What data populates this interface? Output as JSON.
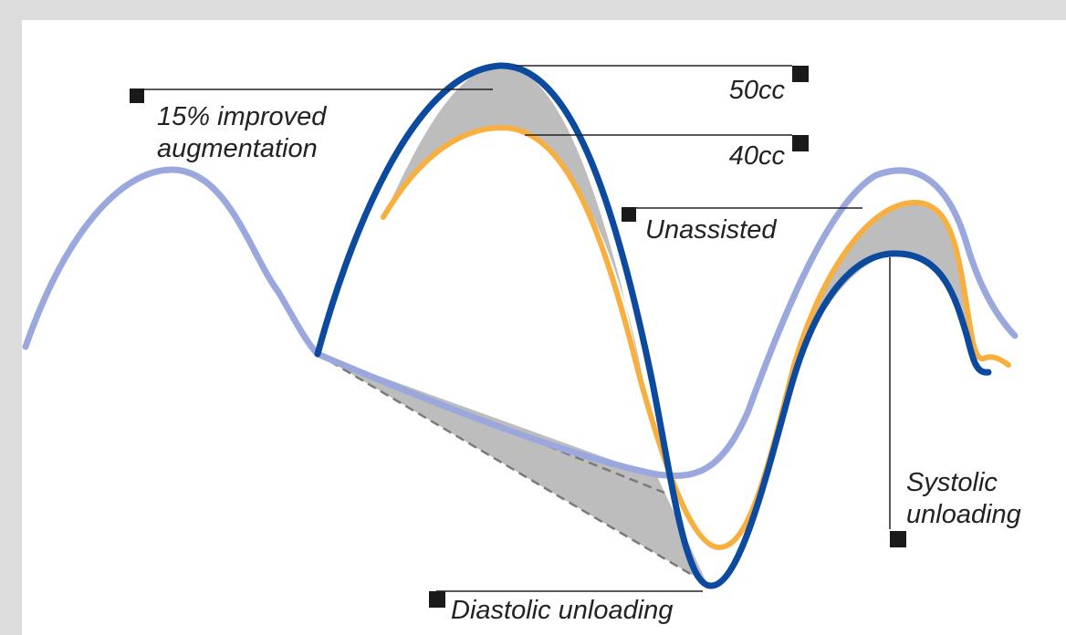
{
  "labels": {
    "augmentation": [
      "15% improved",
      "augmentation"
    ],
    "vol_50": "50cc",
    "vol_40": "40cc",
    "unassisted": "Unassisted",
    "systolic": [
      "Systolic",
      "unloading"
    ],
    "diastolic": "Diastolic unloading"
  },
  "colors": {
    "unassisted_curve": "#9aa8dd",
    "cc50_curve": "#0b4a9e",
    "cc40_curve": "#f7b040",
    "shade": "#bdbdbd",
    "marker": "#1a1a1a"
  }
}
